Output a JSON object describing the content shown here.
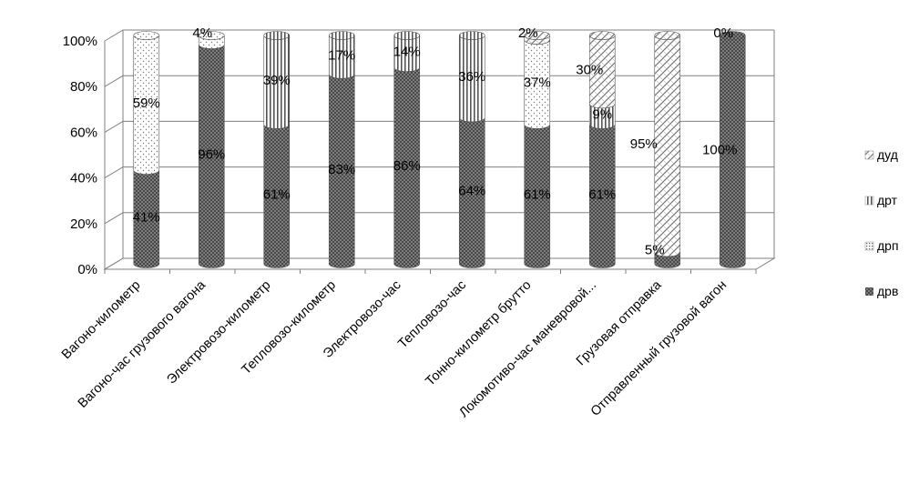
{
  "chart_data": {
    "type": "bar",
    "stacked": "percent",
    "style": "3d-cylinder",
    "title": "",
    "xlabel": "",
    "ylabel": "",
    "ylim": [
      0,
      100
    ],
    "yticks": [
      "0%",
      "20%",
      "40%",
      "60%",
      "80%",
      "100%"
    ],
    "grid": true,
    "legend_position": "right",
    "categories": [
      "Вагоно-километр",
      "Вагоно-час грузового вагона",
      "Электровозо-километр",
      "Тепловозо-километр",
      "Электровозо-час",
      "Тепловозо-час",
      "Тонно-километр брутто",
      "Локомотиво-час маневровой...",
      "Грузовая отправка",
      "Отправленный грузовой вагон"
    ],
    "series": [
      {
        "name": "дрв",
        "values": [
          41,
          96,
          61,
          83,
          86,
          64,
          61,
          61,
          5,
          100
        ],
        "labels": [
          "41%",
          "96%",
          "61%",
          "83%",
          "86%",
          "64%",
          "61%",
          "61%",
          "5%",
          "100%"
        ]
      },
      {
        "name": "дрп",
        "values": [
          59,
          4,
          0,
          0,
          0,
          0,
          37,
          0,
          0,
          0
        ],
        "labels": [
          "59%",
          "4%",
          "",
          "",
          "",
          "",
          "37%",
          "",
          "",
          ""
        ]
      },
      {
        "name": "дрт",
        "values": [
          0,
          0,
          39,
          17,
          14,
          36,
          0,
          9,
          0,
          0
        ],
        "labels": [
          "",
          "",
          "39%",
          "17%",
          "14%",
          "36%",
          "",
          "9%",
          "",
          ""
        ]
      },
      {
        "name": "дуд",
        "values": [
          0,
          0,
          0,
          0,
          0,
          0,
          2,
          30,
          95,
          0
        ],
        "labels": [
          "",
          "",
          "",
          "",
          "",
          "",
          "2%",
          "30%",
          "95%",
          "0%"
        ]
      }
    ],
    "legend_order": [
      "дуд",
      "дрт",
      "дрп",
      "дрв"
    ]
  }
}
